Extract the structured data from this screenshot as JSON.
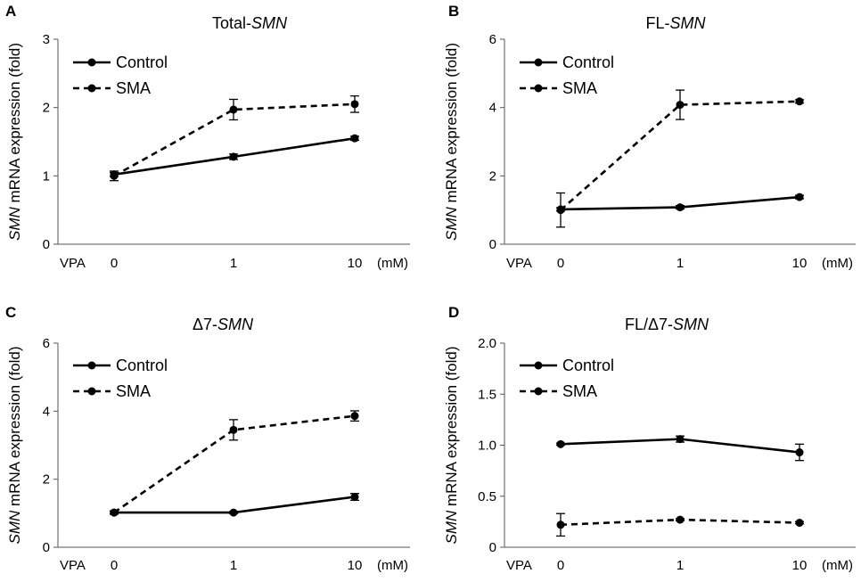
{
  "figure": {
    "xaxis_prefix": "VPA",
    "xaxis_unit": "(mM)"
  },
  "chart_data": [
    {
      "panel": "A",
      "type": "line",
      "title_prefix": "Total-",
      "title_gene": "SMN",
      "ylabel_gene": "SMN",
      "ylabel_rest": " mRNA expression (fold)",
      "categories": [
        "0",
        "1",
        "10"
      ],
      "ylim": [
        0,
        3
      ],
      "yticks": [
        "0",
        "1",
        "2",
        "3"
      ],
      "series": [
        {
          "name": "Control",
          "style": "solid",
          "values": [
            1.02,
            1.28,
            1.55
          ],
          "errors": [
            0.03,
            0.04,
            0.03
          ]
        },
        {
          "name": "SMA",
          "style": "dashed",
          "values": [
            1.0,
            1.97,
            2.05
          ],
          "errors": [
            0.07,
            0.15,
            0.12
          ]
        }
      ]
    },
    {
      "panel": "B",
      "type": "line",
      "title_prefix": "FL-",
      "title_gene": "SMN",
      "ylabel_gene": "SMN",
      "ylabel_rest": " mRNA expression (fold)",
      "categories": [
        "0",
        "1",
        "10"
      ],
      "ylim": [
        0,
        6
      ],
      "yticks": [
        "0",
        "2",
        "4",
        "6"
      ],
      "series": [
        {
          "name": "Control",
          "style": "solid",
          "values": [
            1.02,
            1.08,
            1.38
          ],
          "errors": [
            0.05,
            0.05,
            0.05
          ]
        },
        {
          "name": "SMA",
          "style": "dashed",
          "values": [
            1.0,
            4.08,
            4.18
          ],
          "errors": [
            0.5,
            0.43,
            0.05
          ]
        }
      ]
    },
    {
      "panel": "C",
      "type": "line",
      "title_prefix": "Δ7-",
      "title_gene": "SMN",
      "ylabel_gene": "SMN",
      "ylabel_rest": " mRNA expression (fold)",
      "categories": [
        "0",
        "1",
        "10"
      ],
      "ylim": [
        0,
        6
      ],
      "yticks": [
        "0",
        "2",
        "4",
        "6"
      ],
      "series": [
        {
          "name": "Control",
          "style": "solid",
          "values": [
            1.02,
            1.02,
            1.48
          ],
          "errors": [
            0.03,
            0.03,
            0.1
          ]
        },
        {
          "name": "SMA",
          "style": "dashed",
          "values": [
            1.02,
            3.45,
            3.86
          ],
          "errors": [
            0.05,
            0.3,
            0.15
          ]
        }
      ]
    },
    {
      "panel": "D",
      "type": "line",
      "title_prefix": "FL/Δ7-",
      "title_gene": "SMN",
      "ylabel_gene": "SMN",
      "ylabel_rest": " mRNA expression (fold)",
      "categories": [
        "0",
        "1",
        "10"
      ],
      "ylim": [
        0,
        2.0
      ],
      "yticks": [
        "0",
        "0.5",
        "1.0",
        "1.5",
        "2.0"
      ],
      "series": [
        {
          "name": "Control",
          "style": "solid",
          "values": [
            1.01,
            1.06,
            0.93
          ],
          "errors": [
            0.01,
            0.03,
            0.08
          ]
        },
        {
          "name": "SMA",
          "style": "dashed",
          "values": [
            0.22,
            0.27,
            0.24
          ],
          "errors": [
            0.11,
            0.01,
            0.01
          ]
        }
      ]
    }
  ]
}
